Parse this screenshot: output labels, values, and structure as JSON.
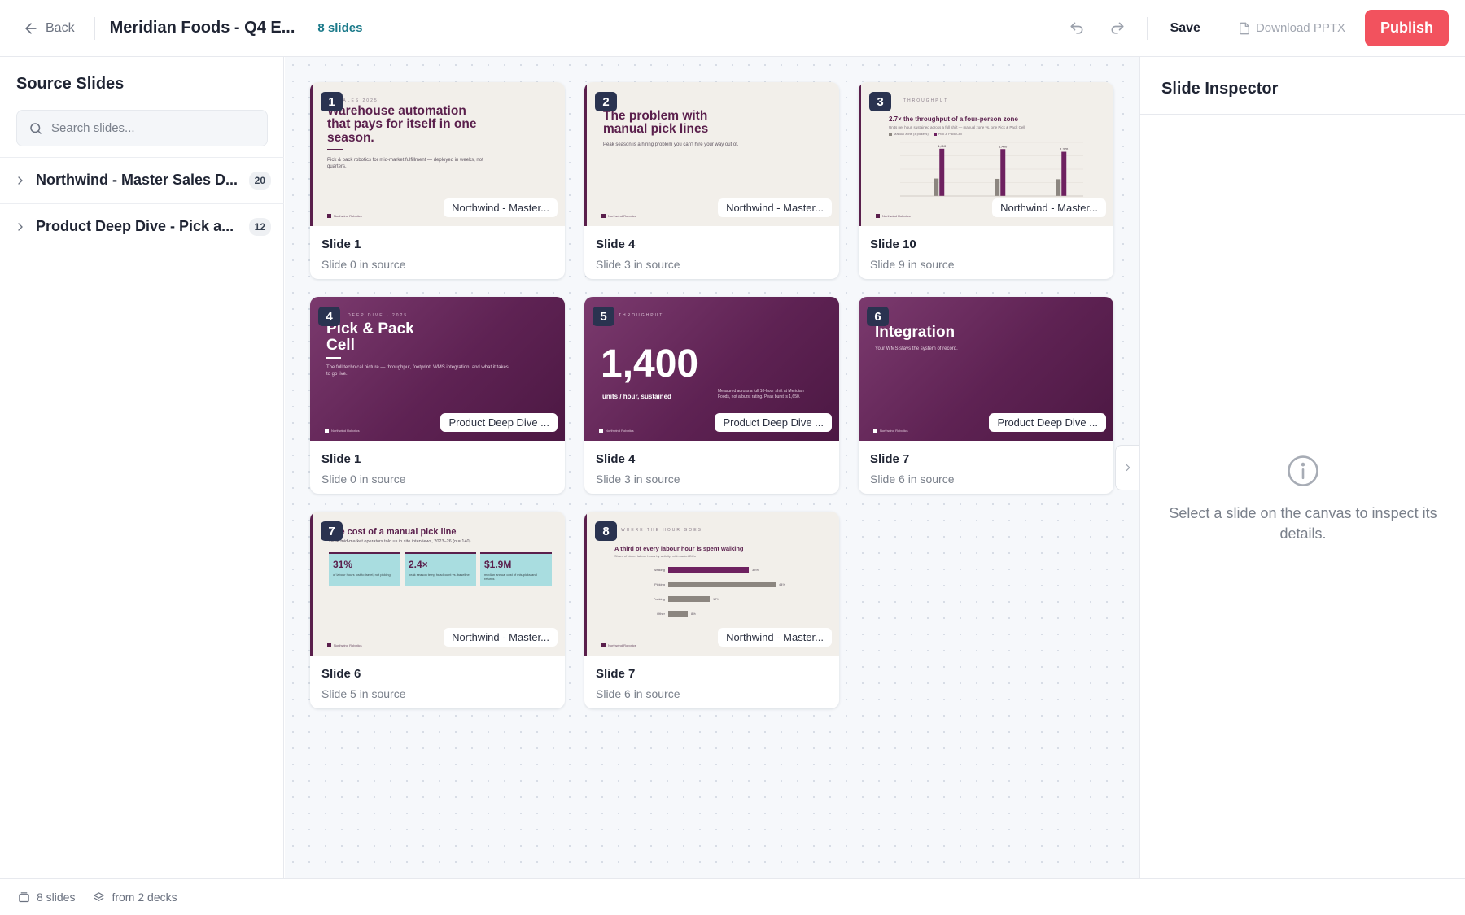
{
  "header": {
    "back_label": "Back",
    "deck_title": "Meridian Foods - Q4 E...",
    "slide_count": "8 slides",
    "save_label": "Save",
    "download_label": "Download PPTX",
    "publish_label": "Publish",
    "accent_color": "#f2525e"
  },
  "sidebar": {
    "title": "Source Slides",
    "search_placeholder": "Search slides...",
    "decks": [
      {
        "name": "Northwind - Master Sales D...",
        "count": "20"
      },
      {
        "name": "Product Deep Dive - Pick a...",
        "count": "12"
      }
    ]
  },
  "canvas": {
    "cards": [
      {
        "number": "1",
        "title": "Slide 1",
        "subtitle": "Slide 0 in source",
        "source": "Northwind - Master...",
        "thumb": {
          "kicker": "SALES 2025",
          "heading": "Warehouse automation that pays for itself in one season.",
          "body": "Pick & pack robotics for mid-market fulfillment — deployed in weeks, not quarters.",
          "footer": "Northwind Robotics"
        }
      },
      {
        "number": "2",
        "title": "Slide 4",
        "subtitle": "Slide 3 in source",
        "source": "Northwind - Master...",
        "thumb": {
          "heading": "The problem with manual pick lines",
          "body": "Peak season is a hiring problem you can't hire your way out of.",
          "footer": "Northwind Robotics"
        }
      },
      {
        "number": "3",
        "title": "Slide 10",
        "subtitle": "Slide 9 in source",
        "source": "Northwind - Master...",
        "thumb": {
          "kicker": "THROUGHPUT",
          "heading": "2.7× the throughput of a four-person zone",
          "body": "Units per hour, sustained across a full shift — manual zone vs. one Pick & Pack Cell",
          "legend": [
            "Manual zone (4 pickers)",
            "Pick & Pack Cell"
          ],
          "bar_labels": [
            "1,410",
            "1,400",
            "1,320"
          ],
          "footer": "Northwind Robotics",
          "chart_data": {
            "type": "bar",
            "categories": [
              "",
              "",
              ""
            ],
            "series": [
              {
                "name": "Manual zone (4 pickers)",
                "values": [
                  520,
                  510,
                  500
                ]
              },
              {
                "name": "Pick & Pack Cell",
                "values": [
                  1410,
                  1400,
                  1320
                ]
              }
            ],
            "ylim": [
              0,
              1600
            ]
          }
        }
      },
      {
        "number": "4",
        "title": "Slide 1",
        "subtitle": "Slide 0 in source",
        "source": "Product Deep Dive ...",
        "thumb": {
          "kicker": "DEEP DIVE · 2025",
          "heading": "Pick & Pack Cell",
          "body": "The full technical picture — throughput, footprint, WMS integration, and what it takes to go live.",
          "footer": "Northwind Robotics"
        }
      },
      {
        "number": "5",
        "title": "Slide 4",
        "subtitle": "Slide 3 in source",
        "source": "Product Deep Dive ...",
        "thumb": {
          "kicker": "THROUGHPUT",
          "big_number": "1,400",
          "big_caption": "units / hour, sustained",
          "body": "Measured across a full 10-hour shift at Meridian Foods, not a burst rating. Peak burst is 1,650.",
          "footer": "Northwind Robotics"
        }
      },
      {
        "number": "6",
        "title": "Slide 7",
        "subtitle": "Slide 6 in source",
        "source": "Product Deep Dive ...",
        "thumb": {
          "heading": "Integration",
          "body": "Your WMS stays the system of record.",
          "footer": "Northwind Robotics"
        }
      },
      {
        "number": "7",
        "title": "Slide 6",
        "subtitle": "Slide 5 in source",
        "source": "Northwind - Master...",
        "thumb": {
          "heading": "The cost of a manual pick line",
          "body": "What mid-market operators told us in site interviews, 2023–26 (n = 140).",
          "stats": [
            {
              "value": "31%",
              "label": "of labour hours lost to travel, not picking"
            },
            {
              "value": "2.4×",
              "label": "peak season temp headcount vs. baseline"
            },
            {
              "value": "$1.9M",
              "label": "median annual cost of mis-picks and returns"
            }
          ],
          "footer": "Northwind Robotics"
        }
      },
      {
        "number": "8",
        "title": "Slide 7",
        "subtitle": "Slide 6 in source",
        "source": "Northwind - Master...",
        "thumb": {
          "kicker": "WHERE THE HOUR GOES",
          "heading": "A third of every labour hour is spent walking",
          "body": "Share of picker labour hours by activity, mid-market DCs",
          "footer": "Northwind Robotics",
          "chart_data": {
            "type": "bar",
            "categories": [
              "Walking",
              "Picking",
              "Packing",
              "Other"
            ],
            "values": [
              33,
              44,
              17,
              8
            ],
            "value_labels": [
              "33%",
              "44%",
              "17%",
              "8%"
            ],
            "xlim": [
              0,
              50
            ]
          }
        }
      }
    ]
  },
  "inspector": {
    "title": "Slide Inspector",
    "empty_message": "Select a slide on the canvas to inspect its details."
  },
  "statusbar": {
    "slides": "8 slides",
    "decks": "from 2 decks"
  }
}
